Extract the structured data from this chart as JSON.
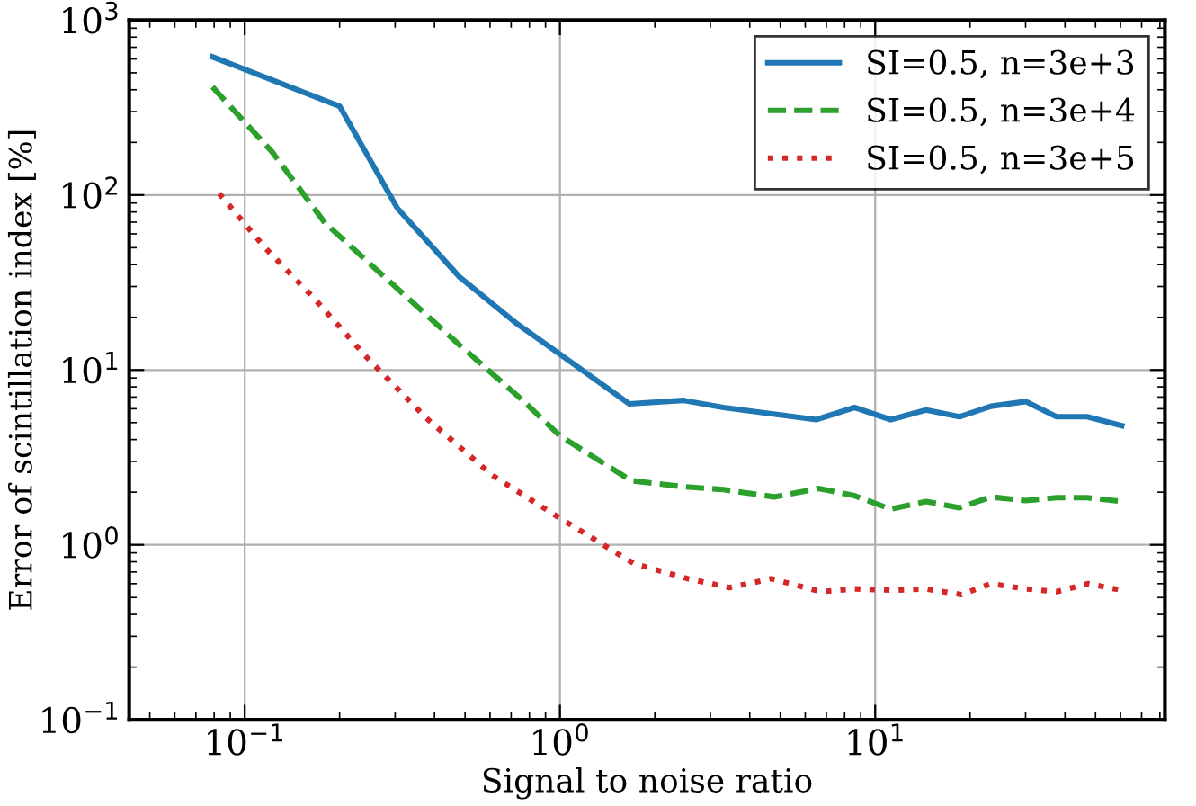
{
  "chart_data": {
    "type": "line",
    "xlabel": "Signal to noise ratio",
    "ylabel": "Error of scintillation index [%]",
    "log": "xy",
    "grid": true,
    "legend": "top right",
    "xlim": [
      0.043,
      83
    ],
    "ylim": [
      0.1,
      1000
    ],
    "xticks": [
      {
        "value": 0.1,
        "label": "10$^{−1}$"
      },
      {
        "value": 1,
        "label": "10$^{0}$"
      },
      {
        "value": 10,
        "label": "10$^{1}$"
      }
    ],
    "yticks": [
      {
        "value": 0.1,
        "label": "10$^{−1}$"
      },
      {
        "value": 1,
        "label": "10$^{0}$"
      },
      {
        "value": 10,
        "label": "10$^{1}$"
      },
      {
        "value": 100,
        "label": "10$^{2}$"
      },
      {
        "value": 1000,
        "label": "10$^{3}$"
      }
    ],
    "series": [
      {
        "name": "SI=0.5, n=3e+3",
        "color": "#1f77b4",
        "line_style": "solid",
        "x": [
          0.079,
          0.2,
          0.305,
          0.48,
          0.73,
          1.0,
          1.66,
          2.46,
          3.3,
          6.5,
          8.6,
          11.2,
          14.5,
          18.5,
          23.3,
          30,
          37.6,
          47,
          60.6
        ],
        "values": [
          617,
          322,
          84,
          34,
          18.4,
          12.3,
          6.4,
          6.7,
          6.1,
          5.2,
          6.1,
          5.2,
          5.9,
          5.4,
          6.2,
          6.6,
          5.4,
          5.4,
          4.8
        ]
      },
      {
        "name": "SI=0.5, n=3e+4",
        "color": "#2ca02c",
        "line_style": "dashed",
        "x": [
          0.079,
          0.122,
          0.18,
          0.3,
          0.48,
          0.755,
          1.0,
          1.68,
          2.46,
          3.3,
          4.78,
          6.6,
          8.6,
          11.2,
          14.5,
          18.5,
          23.3,
          30,
          37.6,
          47,
          60.6
        ],
        "values": [
          415,
          177,
          69,
          30,
          13.9,
          6.8,
          4.2,
          2.33,
          2.15,
          2.07,
          1.88,
          2.1,
          1.91,
          1.6,
          1.77,
          1.63,
          1.88,
          1.79,
          1.86,
          1.86,
          1.77
        ]
      },
      {
        "name": "SI=0.5, n=3e+5",
        "color": "#d62728",
        "line_style": "dotted",
        "x": [
          0.083,
          0.116,
          0.165,
          0.244,
          0.377,
          0.61,
          1.0,
          1.72,
          2.55,
          3.45,
          4.68,
          6.75,
          8.6,
          11.6,
          14.5,
          18.8,
          23.3,
          30,
          37.6,
          47.5,
          60.6
        ],
        "values": [
          102,
          50,
          26,
          11.8,
          5.3,
          2.5,
          1.42,
          0.78,
          0.64,
          0.57,
          0.64,
          0.54,
          0.56,
          0.55,
          0.56,
          0.52,
          0.6,
          0.56,
          0.54,
          0.6,
          0.55
        ]
      }
    ]
  }
}
